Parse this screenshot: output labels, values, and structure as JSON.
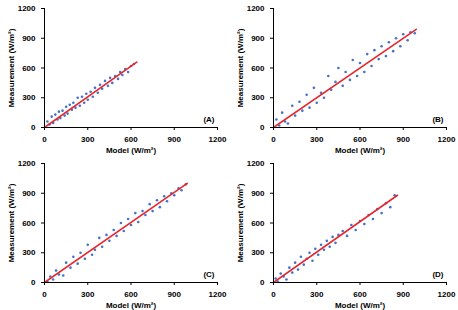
{
  "chart_data": [
    {
      "type": "scatter",
      "annotation": "(A)",
      "x_label": "Model (W/m²)",
      "y_label": "Measurement (W/m²)",
      "xlim": [
        0,
        1200
      ],
      "ylim": [
        0,
        1200
      ],
      "xticks": [
        0,
        300,
        600,
        900,
        1200
      ],
      "yticks": [
        0,
        300,
        600,
        900,
        1200
      ],
      "grid": false,
      "series": [
        {
          "type": "scatter",
          "color": "#4472c4",
          "marker": "circle",
          "x": [
            20,
            35,
            50,
            60,
            75,
            90,
            100,
            110,
            125,
            140,
            150,
            160,
            175,
            190,
            200,
            215,
            230,
            245,
            260,
            275,
            290,
            300,
            320,
            335,
            350,
            370,
            385,
            400,
            420,
            440,
            455,
            470,
            490,
            510,
            525,
            540,
            560,
            580,
            600,
            620
          ],
          "values": [
            60,
            30,
            110,
            45,
            130,
            80,
            160,
            95,
            170,
            120,
            210,
            140,
            230,
            180,
            250,
            200,
            300,
            220,
            310,
            250,
            340,
            280,
            360,
            310,
            400,
            350,
            430,
            390,
            470,
            420,
            500,
            450,
            520,
            490,
            560,
            530,
            590,
            560,
            620,
            640
          ]
        },
        {
          "type": "line",
          "color": "#e8262d",
          "line_style": "solid",
          "x": [
            0,
            640
          ],
          "values": [
            0,
            660
          ]
        }
      ]
    },
    {
      "type": "scatter",
      "annotation": "(B)",
      "x_label": "Model (W/m²)",
      "y_label": "Measurement (W/m²)",
      "xlim": [
        0,
        1200
      ],
      "ylim": [
        0,
        1200
      ],
      "xticks": [
        0,
        300,
        600,
        900,
        1200
      ],
      "yticks": [
        0,
        300,
        600,
        900,
        1200
      ],
      "grid": false,
      "series": [
        {
          "type": "scatter",
          "color": "#4472c4",
          "marker": "circle",
          "x": [
            20,
            40,
            60,
            80,
            100,
            130,
            150,
            180,
            200,
            230,
            250,
            280,
            300,
            330,
            350,
            380,
            400,
            430,
            450,
            480,
            500,
            530,
            550,
            580,
            600,
            630,
            650,
            680,
            700,
            730,
            750,
            780,
            800,
            830,
            850,
            880,
            900,
            930,
            950,
            980
          ],
          "values": [
            80,
            20,
            150,
            60,
            40,
            220,
            120,
            260,
            170,
            330,
            200,
            400,
            250,
            350,
            300,
            520,
            380,
            460,
            600,
            420,
            560,
            480,
            680,
            520,
            650,
            560,
            740,
            620,
            780,
            690,
            820,
            720,
            860,
            770,
            900,
            820,
            940,
            880,
            960,
            950
          ]
        },
        {
          "type": "line",
          "color": "#e8262d",
          "line_style": "solid",
          "x": [
            0,
            990
          ],
          "values": [
            0,
            990
          ]
        }
      ]
    },
    {
      "type": "scatter",
      "annotation": "(C)",
      "x_label": "Model (W/m²)",
      "y_label": "Measurement (W/m²)",
      "xlim": [
        0,
        1200
      ],
      "ylim": [
        0,
        1200
      ],
      "xticks": [
        0,
        300,
        600,
        900,
        1200
      ],
      "yticks": [
        0,
        300,
        600,
        900,
        1200
      ],
      "grid": false,
      "series": [
        {
          "type": "scatter",
          "color": "#4472c4",
          "marker": "circle",
          "x": [
            20,
            40,
            60,
            80,
            100,
            130,
            150,
            180,
            200,
            230,
            250,
            280,
            300,
            330,
            350,
            380,
            400,
            430,
            450,
            480,
            500,
            530,
            550,
            580,
            600,
            630,
            650,
            680,
            700,
            730,
            750,
            780,
            800,
            830,
            850,
            880,
            900,
            930,
            950,
            980
          ],
          "values": [
            10,
            60,
            30,
            120,
            80,
            70,
            200,
            150,
            260,
            190,
            300,
            240,
            380,
            280,
            330,
            450,
            360,
            480,
            420,
            530,
            470,
            600,
            520,
            640,
            580,
            700,
            610,
            720,
            680,
            790,
            720,
            830,
            760,
            870,
            820,
            900,
            880,
            950,
            930,
            990
          ]
        },
        {
          "type": "line",
          "color": "#e8262d",
          "line_style": "solid",
          "x": [
            0,
            990
          ],
          "values": [
            0,
            1000
          ]
        }
      ]
    },
    {
      "type": "scatter",
      "annotation": "(D)",
      "x_label": "Model (W/m²)",
      "y_label": "Measurement (W/m²)",
      "xlim": [
        0,
        1200
      ],
      "ylim": [
        0,
        1200
      ],
      "xticks": [
        0,
        300,
        600,
        900,
        1200
      ],
      "yticks": [
        0,
        300,
        600,
        900,
        1200
      ],
      "grid": false,
      "series": [
        {
          "type": "scatter",
          "color": "#4472c4",
          "marker": "circle",
          "x": [
            15,
            30,
            50,
            70,
            90,
            110,
            130,
            150,
            170,
            190,
            210,
            230,
            250,
            270,
            290,
            310,
            330,
            350,
            370,
            390,
            410,
            430,
            450,
            480,
            510,
            540,
            570,
            600,
            630,
            660,
            690,
            720,
            750,
            780,
            810,
            840
          ],
          "values": [
            40,
            10,
            90,
            60,
            30,
            150,
            100,
            200,
            130,
            260,
            180,
            240,
            300,
            220,
            340,
            280,
            380,
            330,
            420,
            360,
            460,
            400,
            480,
            520,
            470,
            580,
            530,
            620,
            590,
            680,
            640,
            740,
            700,
            800,
            760,
            880
          ]
        },
        {
          "type": "line",
          "color": "#e8262d",
          "line_style": "solid",
          "x": [
            0,
            860
          ],
          "values": [
            0,
            880
          ]
        }
      ]
    }
  ]
}
